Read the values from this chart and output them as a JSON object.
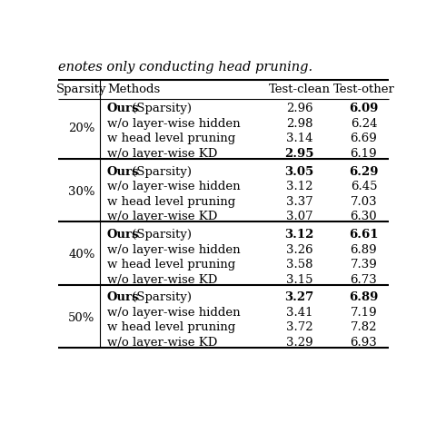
{
  "caption_top": "enotes only conducting head pruning.",
  "headers": [
    "Sparsity",
    "Methods",
    "Test-clean",
    "Test-other"
  ],
  "groups": [
    {
      "sparsity": "20%",
      "rows": [
        {
          "method": "Ours (Sparsity)",
          "ours_bold": true,
          "test_clean": "2.96",
          "test_other": "6.09",
          "tc_bold": false,
          "to_bold": true
        },
        {
          "method": "w/o layer-wise hidden",
          "ours_bold": false,
          "test_clean": "2.98",
          "test_other": "6.24",
          "tc_bold": false,
          "to_bold": false
        },
        {
          "method": "w head level pruning",
          "ours_bold": false,
          "test_clean": "3.14",
          "test_other": "6.69",
          "tc_bold": false,
          "to_bold": false
        },
        {
          "method": "w/o layer-wise KD",
          "ours_bold": false,
          "test_clean": "2.95",
          "test_other": "6.19",
          "tc_bold": true,
          "to_bold": false
        }
      ]
    },
    {
      "sparsity": "30%",
      "rows": [
        {
          "method": "Ours (Sparsity)",
          "ours_bold": true,
          "test_clean": "3.05",
          "test_other": "6.29",
          "tc_bold": true,
          "to_bold": true
        },
        {
          "method": "w/o layer-wise hidden",
          "ours_bold": false,
          "test_clean": "3.12",
          "test_other": "6.45",
          "tc_bold": false,
          "to_bold": false
        },
        {
          "method": "w head level pruning",
          "ours_bold": false,
          "test_clean": "3.37",
          "test_other": "7.03",
          "tc_bold": false,
          "to_bold": false
        },
        {
          "method": "w/o layer-wise KD",
          "ours_bold": false,
          "test_clean": "3.07",
          "test_other": "6.30",
          "tc_bold": false,
          "to_bold": false
        }
      ]
    },
    {
      "sparsity": "40%",
      "rows": [
        {
          "method": "Ours (Sparsity)",
          "ours_bold": true,
          "test_clean": "3.12",
          "test_other": "6.61",
          "tc_bold": true,
          "to_bold": true
        },
        {
          "method": "w/o layer-wise hidden",
          "ours_bold": false,
          "test_clean": "3.26",
          "test_other": "6.89",
          "tc_bold": false,
          "to_bold": false
        },
        {
          "method": "w head level pruning",
          "ours_bold": false,
          "test_clean": "3.58",
          "test_other": "7.39",
          "tc_bold": false,
          "to_bold": false
        },
        {
          "method": "w/o layer-wise KD",
          "ours_bold": false,
          "test_clean": "3.15",
          "test_other": "6.73",
          "tc_bold": false,
          "to_bold": false
        }
      ]
    },
    {
      "sparsity": "50%",
      "rows": [
        {
          "method": "Ours (Sparsity)",
          "ours_bold": true,
          "test_clean": "3.27",
          "test_other": "6.89",
          "tc_bold": true,
          "to_bold": true
        },
        {
          "method": "w/o layer-wise hidden",
          "ours_bold": false,
          "test_clean": "3.41",
          "test_other": "7.19",
          "tc_bold": false,
          "to_bold": false
        },
        {
          "method": "w head level pruning",
          "ours_bold": false,
          "test_clean": "3.72",
          "test_other": "7.82",
          "tc_bold": false,
          "to_bold": false
        },
        {
          "method": "w/o layer-wise KD",
          "ours_bold": false,
          "test_clean": "3.29",
          "test_other": "6.93",
          "tc_bold": false,
          "to_bold": false
        }
      ]
    }
  ],
  "font_size": 9.5,
  "header_font_size": 9.5,
  "caption_font_size": 10.5,
  "col_sparsity": 0.08,
  "col_methods": 0.155,
  "col_test_clean": 0.725,
  "col_test_other": 0.915,
  "vline_x": 0.135
}
